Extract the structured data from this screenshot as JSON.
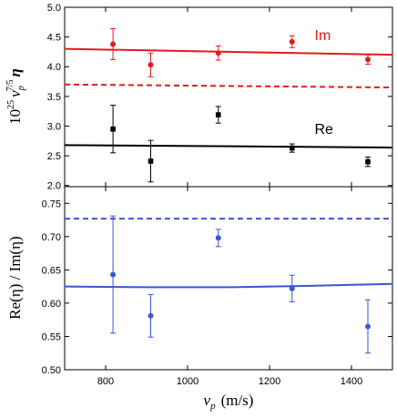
{
  "chart_data": [
    {
      "type": "scatter",
      "xlim": [
        700,
        1500
      ],
      "ylim": [
        1.98,
        5.0
      ],
      "xticks": [
        800,
        1000,
        1200,
        1400
      ],
      "yticks": [
        2.0,
        2.5,
        3.0,
        3.5,
        4.0,
        4.5,
        5.0
      ],
      "ytick_labels": [
        "2.0",
        "2.5",
        "3.0",
        "3.5",
        "4.0",
        "4.5",
        "5.0"
      ],
      "ylabel_parts": {
        "coef": "10",
        "exp": "25",
        "var": "v",
        "sub": "p",
        "pow": "7/5",
        "eta": "η"
      },
      "annotations": [
        {
          "text": "Im",
          "color": "#e41a1c",
          "x": 1310,
          "y": 4.45
        },
        {
          "text": "Re",
          "color": "#000000",
          "x": 1310,
          "y": 2.87
        }
      ],
      "series": [
        {
          "name": "Im",
          "color": "#e41a1c",
          "marker": "circle",
          "x": [
            818,
            910,
            1075,
            1255,
            1440
          ],
          "y": [
            4.38,
            4.03,
            4.23,
            4.42,
            4.12
          ],
          "err": [
            0.26,
            0.2,
            0.12,
            0.1,
            0.08
          ]
        },
        {
          "name": "Re",
          "color": "#000000",
          "marker": "square",
          "x": [
            818,
            910,
            1075,
            1255,
            1440
          ],
          "y": [
            2.95,
            2.41,
            3.19,
            2.63,
            2.4
          ],
          "err": [
            0.4,
            0.35,
            0.14,
            0.07,
            0.08
          ]
        }
      ],
      "lines": [
        {
          "color": "#e41a1c",
          "style": "solid",
          "x": [
            700,
            1500
          ],
          "y": [
            4.3,
            4.2
          ]
        },
        {
          "color": "#e41a1c",
          "style": "dashed",
          "x": [
            700,
            1500
          ],
          "y": [
            3.7,
            3.65
          ]
        },
        {
          "color": "#000000",
          "style": "solid",
          "x": [
            700,
            1500
          ],
          "y": [
            2.68,
            2.64
          ]
        }
      ]
    },
    {
      "type": "scatter",
      "xlim": [
        700,
        1500
      ],
      "ylim": [
        0.5,
        0.775
      ],
      "xticks": [
        800,
        1000,
        1200,
        1400
      ],
      "xtick_labels": [
        "800",
        "1000",
        "1200",
        "1400"
      ],
      "yticks": [
        0.5,
        0.55,
        0.6,
        0.65,
        0.7,
        0.75
      ],
      "ytick_labels": [
        "0.50",
        "0.55",
        "0.60",
        "0.65",
        "0.70",
        "0.75"
      ],
      "ylabel": "Re(η) / Im(η)",
      "xlabel_parts": {
        "var": "v",
        "sub": "p",
        "unit": "(m/s)"
      },
      "series": [
        {
          "name": "ratio",
          "color": "#3a55d6",
          "marker": "circle",
          "x": [
            818,
            910,
            1075,
            1255,
            1440
          ],
          "y": [
            0.643,
            0.581,
            0.698,
            0.622,
            0.565
          ],
          "err": [
            0.088,
            0.032,
            0.013,
            0.02,
            0.04
          ]
        }
      ],
      "lines": [
        {
          "color": "#3a55d6",
          "style": "dashed",
          "x": [
            700,
            1500
          ],
          "y": [
            0.727,
            0.727
          ]
        },
        {
          "color": "#3a55d6",
          "style": "solid",
          "x": [
            700,
            900,
            1100,
            1300,
            1500
          ],
          "y": [
            0.625,
            0.624,
            0.624,
            0.626,
            0.629
          ]
        }
      ]
    }
  ]
}
